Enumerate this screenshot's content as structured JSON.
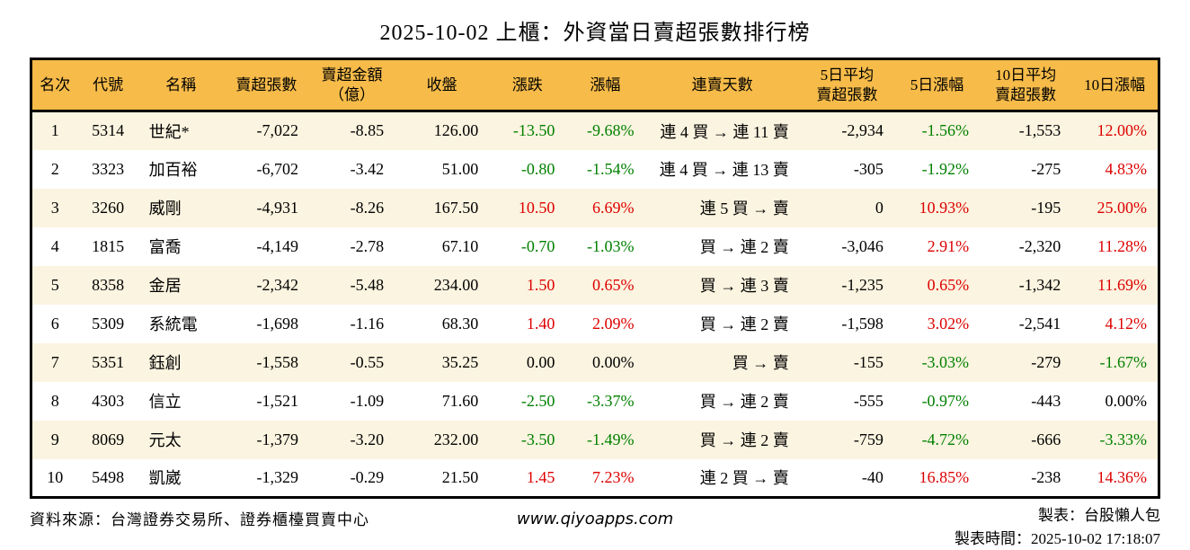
{
  "title": "2025-10-02 上櫃：外資當日賣超張數排行榜",
  "colors": {
    "up": "#dd0000",
    "down": "#008000",
    "neutral": "#000000",
    "header_bg": "#f6bb49",
    "row_alt_bg": "#fbf4e0",
    "row_bg": "#ffffff",
    "border": "#000000"
  },
  "table": {
    "headers": [
      "名次",
      "代號",
      "名稱",
      "賣超張數",
      "賣超金額\n（億）",
      "收盤",
      "漲跌",
      "漲幅",
      "連賣天數",
      "5日平均\n賣超張數",
      "5日漲幅",
      "10日平均\n賣超張數",
      "10日漲幅"
    ],
    "field_names": [
      "rank",
      "code",
      "name",
      "sell-volume",
      "sell-amount",
      "close",
      "change",
      "change-pct",
      "sell-streak",
      "avg5-sell-volume",
      "pct5-change",
      "avg10-sell-volume",
      "pct10-change"
    ],
    "aligns": [
      "center",
      "center",
      "left",
      "right",
      "right",
      "right",
      "right",
      "right",
      "right",
      "right",
      "right",
      "right",
      "right"
    ],
    "rows": [
      {
        "cells": [
          {
            "v": "1"
          },
          {
            "v": "5314"
          },
          {
            "v": "世紀*"
          },
          {
            "v": "-7,022"
          },
          {
            "v": "-8.85"
          },
          {
            "v": "126.00"
          },
          {
            "v": "-13.50",
            "c": "down"
          },
          {
            "v": "-9.68%",
            "c": "down"
          },
          {
            "v": "連 4 買 → 連 11 賣"
          },
          {
            "v": "-2,934"
          },
          {
            "v": "-1.56%",
            "c": "down"
          },
          {
            "v": "-1,553"
          },
          {
            "v": "12.00%",
            "c": "up"
          }
        ]
      },
      {
        "cells": [
          {
            "v": "2"
          },
          {
            "v": "3323"
          },
          {
            "v": "加百裕"
          },
          {
            "v": "-6,702"
          },
          {
            "v": "-3.42"
          },
          {
            "v": "51.00"
          },
          {
            "v": "-0.80",
            "c": "down"
          },
          {
            "v": "-1.54%",
            "c": "down"
          },
          {
            "v": "連 4 買 → 連 13 賣"
          },
          {
            "v": "-305"
          },
          {
            "v": "-1.92%",
            "c": "down"
          },
          {
            "v": "-275"
          },
          {
            "v": "4.83%",
            "c": "up"
          }
        ]
      },
      {
        "cells": [
          {
            "v": "3"
          },
          {
            "v": "3260"
          },
          {
            "v": "威剛"
          },
          {
            "v": "-4,931"
          },
          {
            "v": "-8.26"
          },
          {
            "v": "167.50"
          },
          {
            "v": "10.50",
            "c": "up"
          },
          {
            "v": "6.69%",
            "c": "up"
          },
          {
            "v": "連 5 買 → 賣"
          },
          {
            "v": "0"
          },
          {
            "v": "10.93%",
            "c": "up"
          },
          {
            "v": "-195"
          },
          {
            "v": "25.00%",
            "c": "up"
          }
        ]
      },
      {
        "cells": [
          {
            "v": "4"
          },
          {
            "v": "1815"
          },
          {
            "v": "富喬"
          },
          {
            "v": "-4,149"
          },
          {
            "v": "-2.78"
          },
          {
            "v": "67.10"
          },
          {
            "v": "-0.70",
            "c": "down"
          },
          {
            "v": "-1.03%",
            "c": "down"
          },
          {
            "v": "買 → 連 2 賣"
          },
          {
            "v": "-3,046"
          },
          {
            "v": "2.91%",
            "c": "up"
          },
          {
            "v": "-2,320"
          },
          {
            "v": "11.28%",
            "c": "up"
          }
        ]
      },
      {
        "cells": [
          {
            "v": "5"
          },
          {
            "v": "8358"
          },
          {
            "v": "金居"
          },
          {
            "v": "-2,342"
          },
          {
            "v": "-5.48"
          },
          {
            "v": "234.00"
          },
          {
            "v": "1.50",
            "c": "up"
          },
          {
            "v": "0.65%",
            "c": "up"
          },
          {
            "v": "買 → 連 3 賣"
          },
          {
            "v": "-1,235"
          },
          {
            "v": "0.65%",
            "c": "up"
          },
          {
            "v": "-1,342"
          },
          {
            "v": "11.69%",
            "c": "up"
          }
        ]
      },
      {
        "cells": [
          {
            "v": "6"
          },
          {
            "v": "5309"
          },
          {
            "v": "系統電"
          },
          {
            "v": "-1,698"
          },
          {
            "v": "-1.16"
          },
          {
            "v": "68.30"
          },
          {
            "v": "1.40",
            "c": "up"
          },
          {
            "v": "2.09%",
            "c": "up"
          },
          {
            "v": "買 → 連 2 賣"
          },
          {
            "v": "-1,598"
          },
          {
            "v": "3.02%",
            "c": "up"
          },
          {
            "v": "-2,541"
          },
          {
            "v": "4.12%",
            "c": "up"
          }
        ]
      },
      {
        "cells": [
          {
            "v": "7"
          },
          {
            "v": "5351"
          },
          {
            "v": "鈺創"
          },
          {
            "v": "-1,558"
          },
          {
            "v": "-0.55"
          },
          {
            "v": "35.25"
          },
          {
            "v": "0.00",
            "c": "neutral"
          },
          {
            "v": "0.00%",
            "c": "neutral"
          },
          {
            "v": "買 → 賣"
          },
          {
            "v": "-155"
          },
          {
            "v": "-3.03%",
            "c": "down"
          },
          {
            "v": "-279"
          },
          {
            "v": "-1.67%",
            "c": "down"
          }
        ]
      },
      {
        "cells": [
          {
            "v": "8"
          },
          {
            "v": "4303"
          },
          {
            "v": "信立"
          },
          {
            "v": "-1,521"
          },
          {
            "v": "-1.09"
          },
          {
            "v": "71.60"
          },
          {
            "v": "-2.50",
            "c": "down"
          },
          {
            "v": "-3.37%",
            "c": "down"
          },
          {
            "v": "買 → 連 2 賣"
          },
          {
            "v": "-555"
          },
          {
            "v": "-0.97%",
            "c": "down"
          },
          {
            "v": "-443"
          },
          {
            "v": "0.00%",
            "c": "neutral"
          }
        ]
      },
      {
        "cells": [
          {
            "v": "9"
          },
          {
            "v": "8069"
          },
          {
            "v": "元太"
          },
          {
            "v": "-1,379"
          },
          {
            "v": "-3.20"
          },
          {
            "v": "232.00"
          },
          {
            "v": "-3.50",
            "c": "down"
          },
          {
            "v": "-1.49%",
            "c": "down"
          },
          {
            "v": "買 → 連 2 賣"
          },
          {
            "v": "-759"
          },
          {
            "v": "-4.72%",
            "c": "down"
          },
          {
            "v": "-666"
          },
          {
            "v": "-3.33%",
            "c": "down"
          }
        ]
      },
      {
        "cells": [
          {
            "v": "10"
          },
          {
            "v": "5498"
          },
          {
            "v": "凱崴"
          },
          {
            "v": "-1,329"
          },
          {
            "v": "-0.29"
          },
          {
            "v": "21.50"
          },
          {
            "v": "1.45",
            "c": "up"
          },
          {
            "v": "7.23%",
            "c": "up"
          },
          {
            "v": "連 2 買 → 賣"
          },
          {
            "v": "-40"
          },
          {
            "v": "16.85%",
            "c": "up"
          },
          {
            "v": "-238"
          },
          {
            "v": "14.36%",
            "c": "up"
          }
        ]
      }
    ]
  },
  "footer": {
    "source": "資料來源：台灣證券交易所、證券櫃檯買賣中心",
    "website": "www.qiyoapps.com",
    "maker": "製表：台股懶人包",
    "timestamp": "製表時間：2025-10-02 17:18:07"
  }
}
